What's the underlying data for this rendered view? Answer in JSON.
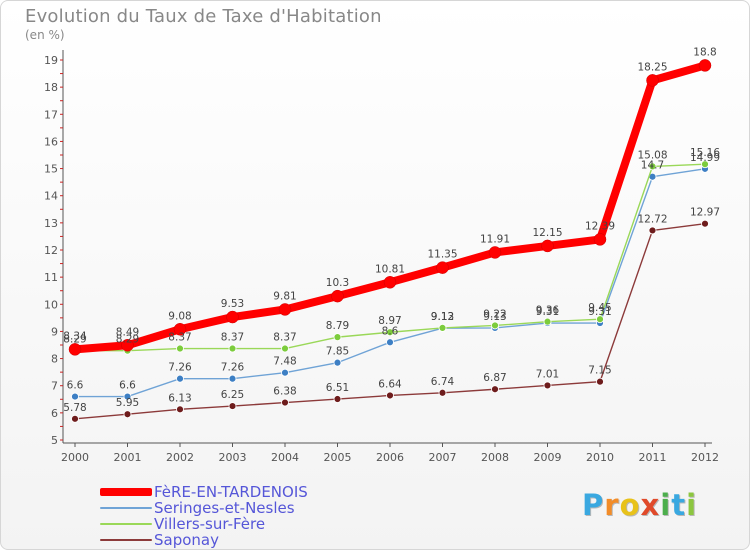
{
  "title": "Evolution du Taux de Taxe d'Habitation",
  "unit": "(en %)",
  "logo": {
    "text": "Proxiti",
    "letters": [
      {
        "ch": "P",
        "color": "#3aa8e0"
      },
      {
        "ch": "r",
        "color": "#f28c28"
      },
      {
        "ch": "o",
        "color": "#e8c21a"
      },
      {
        "ch": "x",
        "color": "#e04a2a"
      },
      {
        "ch": "i",
        "color": "#4cae4c"
      },
      {
        "ch": "t",
        "color": "#3aa8e0"
      },
      {
        "ch": "i",
        "color": "#8cc63f"
      }
    ]
  },
  "chart_data": {
    "type": "line",
    "title": "Evolution du Taux de Taxe d'Habitation",
    "subtitle": "(en %)",
    "x": [
      2000,
      2001,
      2002,
      2003,
      2004,
      2005,
      2006,
      2007,
      2008,
      2009,
      2010,
      2011,
      2012
    ],
    "ylim": [
      5,
      19
    ],
    "yticks": [
      5,
      6,
      7,
      8,
      9,
      10,
      11,
      12,
      13,
      14,
      15,
      16,
      17,
      18,
      19
    ],
    "grid": false,
    "legend_position": "bottom-left",
    "series": [
      {
        "name": "FèRE-EN-TARDENOIS",
        "color": "#ff0000",
        "marker": "#ff0000",
        "values": [
          8.34,
          8.49,
          9.08,
          9.53,
          9.81,
          10.3,
          10.81,
          11.35,
          11.91,
          12.15,
          12.39,
          18.25,
          18.8
        ],
        "labels": [
          "8.34",
          "8.49",
          "9.08",
          "9.53",
          "9.81",
          "10.3",
          "10.81",
          "11.35",
          "11.91",
          "12.15",
          "12.39",
          "18.25",
          "18.8"
        ]
      },
      {
        "name": "Seringes-et-Nesles",
        "color": "#6fa3d6",
        "marker": "#3d7fc4",
        "values": [
          6.6,
          6.6,
          7.26,
          7.26,
          7.48,
          7.85,
          8.6,
          9.12,
          9.13,
          9.31,
          9.31,
          14.7,
          14.99
        ],
        "labels": [
          "6.6",
          "6.6",
          "7.26",
          "7.26",
          "7.48",
          "7.85",
          "8.6",
          "9.12",
          "9.13",
          "9.31",
          "9.31",
          "14.7",
          "14.99"
        ]
      },
      {
        "name": "Villers-sur-Fère",
        "color": "#9ad858",
        "marker": "#7ccc3c",
        "values": [
          8.29,
          8.29,
          8.37,
          8.37,
          8.37,
          8.79,
          8.97,
          9.13,
          9.22,
          9.36,
          9.45,
          15.08,
          15.16
        ],
        "labels": [
          "8.29",
          "8.29",
          "8.37",
          "8.37",
          "8.37",
          "8.79",
          "8.97",
          "9.13",
          "9.22",
          "9.36",
          "9.45",
          "15.08",
          "15.16"
        ]
      },
      {
        "name": "Saponay",
        "color": "#8c3a3a",
        "marker": "#6e1c1c",
        "values": [
          5.78,
          5.95,
          6.13,
          6.25,
          6.38,
          6.51,
          6.64,
          6.74,
          6.87,
          7.01,
          7.15,
          12.72,
          12.97
        ],
        "labels": [
          "5.78",
          "5.95",
          "6.13",
          "6.25",
          "6.38",
          "6.51",
          "6.64",
          "6.74",
          "6.87",
          "7.01",
          "7.15",
          "12.72",
          "12.97"
        ]
      }
    ]
  }
}
